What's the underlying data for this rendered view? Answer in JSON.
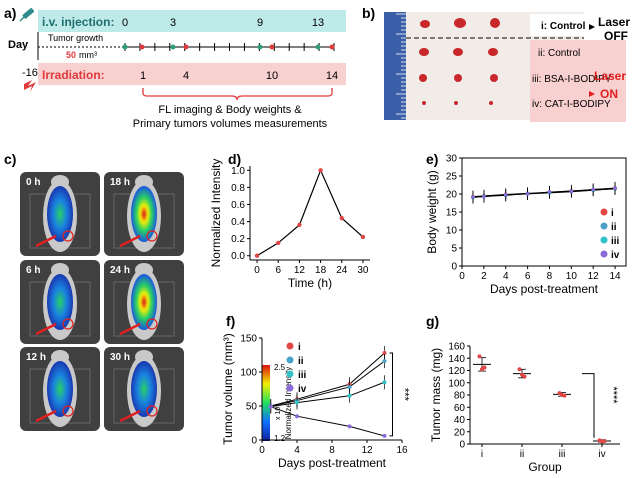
{
  "panels": {
    "a": {
      "letter": "a)",
      "iv_label": "i.v. injection:",
      "iv_days": [
        "0",
        "3",
        "9",
        "13"
      ],
      "day_label": "Day",
      "tumor_growth_label": "Tumor growth",
      "tumor_size_value": "50",
      "tumor_size_unit": "mm³",
      "start_day": "-16",
      "irradiation_label": "Irradiation:",
      "irr_days": [
        "1",
        "4",
        "10",
        "14"
      ],
      "caption_line1": "FL imaging & Body weights &",
      "caption_line2": "Primary tumors volumes measurements",
      "colors": {
        "iv_band": "#bfeaea",
        "irr_band": "#f9d0d0",
        "irr_text": "#e03a3a",
        "iv_marker": "#2e9c7b",
        "irr_marker": "#e03a3a"
      }
    },
    "b": {
      "letter": "b)",
      "groups": [
        "i: Control",
        "ii: Control",
        "iii: BSA-I-BODIPY",
        "iv: CAT-I-BODIPY"
      ],
      "laser_off": [
        "Laser",
        "OFF"
      ],
      "laser_on": [
        "Laser",
        "ON"
      ],
      "colors": {
        "on_text": "#e02020",
        "pink_box": "#f9d0d0",
        "tumor": "#c8282a"
      }
    },
    "c": {
      "letter": "c)",
      "times": [
        "0 h",
        "18 h",
        "6 h",
        "24 h",
        "12 h",
        "30 h"
      ],
      "colorbar_max": "2.5",
      "colorbar_min": "1.2",
      "colorbar_unit": "x 10⁸",
      "colorbar_label": "Normalized Intensity"
    }
  },
  "chart_data": [
    {
      "panel": "d)",
      "type": "line",
      "xlabel": "Time (h)",
      "ylabel": "Normalized Intensity",
      "x": [
        0,
        6,
        12,
        18,
        24,
        30
      ],
      "values": [
        0.0,
        0.15,
        0.36,
        1.0,
        0.44,
        0.22
      ],
      "xlim": [
        -2,
        32
      ],
      "ylim": [
        -0.05,
        1.05
      ],
      "xticks": [
        "0",
        "6",
        "12",
        "18",
        "24",
        "30"
      ],
      "yticks": [
        "0.0",
        "0.2",
        "0.4",
        "0.6",
        "0.8",
        "1.0"
      ],
      "color": "#e04848"
    },
    {
      "panel": "e)",
      "type": "line",
      "xlabel": "Days post-treatment",
      "ylabel": "Body weight (g)",
      "xticks": [
        "0",
        "2",
        "4",
        "6",
        "8",
        "10",
        "12",
        "14"
      ],
      "yticks": [
        "0",
        "5",
        "10",
        "15",
        "20",
        "25",
        "30"
      ],
      "xlim": [
        0,
        15
      ],
      "ylim": [
        0,
        30
      ],
      "legend_position": "right",
      "series": [
        {
          "name": "i",
          "color": "#e04848",
          "x": [
            1,
            2,
            4,
            6,
            8,
            10,
            12,
            14
          ],
          "values": [
            19.3,
            19.5,
            19.9,
            20.2,
            20.5,
            20.9,
            21.2,
            21.7
          ]
        },
        {
          "name": "ii",
          "color": "#4aa0c8",
          "x": [
            1,
            2,
            4,
            6,
            8,
            10,
            12,
            14
          ],
          "values": [
            19.0,
            19.3,
            19.6,
            20.1,
            20.4,
            20.8,
            21.1,
            21.4
          ]
        },
        {
          "name": "iii",
          "color": "#32c3c8",
          "x": [
            1,
            2,
            4,
            6,
            8,
            10,
            12,
            14
          ],
          "values": [
            19.1,
            19.4,
            19.7,
            20.0,
            20.3,
            20.6,
            21.0,
            21.5
          ]
        },
        {
          "name": "iv",
          "color": "#8c6ad8",
          "x": [
            1,
            2,
            4,
            6,
            8,
            10,
            12,
            14
          ],
          "values": [
            19.2,
            19.2,
            19.8,
            20.0,
            20.6,
            20.7,
            21.3,
            21.6
          ]
        }
      ]
    },
    {
      "panel": "f)",
      "type": "line",
      "xlabel": "Days post-treatment",
      "ylabel": "Tumor volume (mm³)",
      "xticks": [
        "0",
        "4",
        "8",
        "12",
        "16"
      ],
      "yticks": [
        "0",
        "50",
        "100",
        "150"
      ],
      "xlim": [
        0,
        16
      ],
      "ylim": [
        0,
        150
      ],
      "significance": "***",
      "legend_position": "top-left",
      "series": [
        {
          "name": "i",
          "color": "#e04848",
          "x": [
            1,
            4,
            10,
            14
          ],
          "values": [
            50,
            60,
            82,
            128
          ]
        },
        {
          "name": "ii",
          "color": "#4aa0c8",
          "x": [
            1,
            4,
            10,
            14
          ],
          "values": [
            50,
            58,
            78,
            116
          ]
        },
        {
          "name": "iii",
          "color": "#32c3c8",
          "x": [
            1,
            4,
            10,
            14
          ],
          "values": [
            49,
            55,
            65,
            85
          ]
        },
        {
          "name": "iv",
          "color": "#8c6ad8",
          "x": [
            1,
            4,
            10,
            14
          ],
          "values": [
            49,
            35,
            20,
            6
          ]
        }
      ]
    },
    {
      "panel": "g)",
      "type": "scatter",
      "xlabel": "Group",
      "ylabel": "Tumor mass (mg)",
      "categories": [
        "i",
        "ii",
        "iii",
        "iv"
      ],
      "yticks": [
        "0",
        "20",
        "40",
        "60",
        "80",
        "100",
        "120",
        "140",
        "160"
      ],
      "ylim": [
        0,
        160
      ],
      "significance": "****",
      "groups": [
        {
          "name": "i",
          "mean": 130,
          "sd": 11,
          "points": [
            143,
            122,
            125
          ]
        },
        {
          "name": "ii",
          "mean": 115,
          "sd": 7,
          "points": [
            122,
            113,
            110
          ]
        },
        {
          "name": "iii",
          "mean": 81,
          "sd": 3,
          "points": [
            83,
            80,
            79
          ]
        },
        {
          "name": "iv",
          "mean": 5,
          "sd": 2,
          "points": [
            6,
            4,
            5
          ]
        }
      ],
      "point_color": "#e04848"
    }
  ]
}
